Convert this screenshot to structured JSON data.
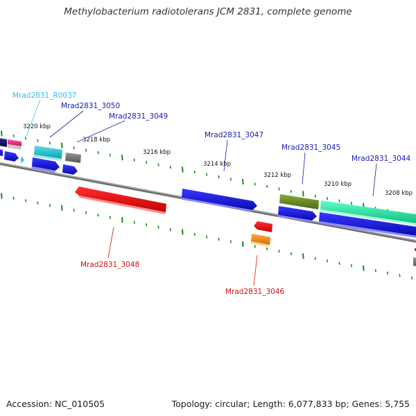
{
  "title": "Methylobacterium radiotolerans JCM 2831, complete genome",
  "footer": {
    "accession": "Accession: NC_010505",
    "topology": "Topology: circular; Length: 6,077,833 bp; Genes: 5,755"
  },
  "colors": {
    "backbone": "#808080",
    "tick": "#1a8a1a",
    "label_blue": "#1a1ab0",
    "label_cyan": "#33bbee",
    "label_red": "#cc1111"
  },
  "kbp_labels": [
    "3220 kbp",
    "3218 kbp",
    "3216 kbp",
    "3214 kbp",
    "3212 kbp",
    "3210 kbp",
    "3208 kbp"
  ],
  "gene_labels": [
    {
      "id": "Mrad2831_R0037",
      "color": "#33bbee"
    },
    {
      "id": "Mrad2831_3050",
      "color": "#1a1ab0"
    },
    {
      "id": "Mrad2831_3049",
      "color": "#1a1ab0"
    },
    {
      "id": "Mrad2831_3047",
      "color": "#1a1ab0"
    },
    {
      "id": "Mrad2831_3045",
      "color": "#1a1ab0"
    },
    {
      "id": "Mrad2831_3044",
      "color": "#1a1ab0"
    },
    {
      "id": "Mrad2831_3048",
      "color": "#cc1111"
    },
    {
      "id": "Mrad2831_3046",
      "color": "#cc1111"
    }
  ],
  "features": [
    {
      "name": "dark-navy",
      "color": "#101060"
    },
    {
      "name": "pink",
      "color": "#e8337a"
    },
    {
      "name": "light-grey",
      "color": "#c8c8c8"
    },
    {
      "name": "cyan",
      "color": "#22c0cc"
    },
    {
      "name": "grey",
      "color": "#777777"
    },
    {
      "name": "blue",
      "color": "#1a1ae0"
    },
    {
      "name": "red",
      "color": "#ee1111"
    },
    {
      "name": "orange",
      "color": "#f08c10"
    },
    {
      "name": "olive",
      "color": "#6a8a22"
    },
    {
      "name": "mint",
      "color": "#22e8a0"
    }
  ]
}
